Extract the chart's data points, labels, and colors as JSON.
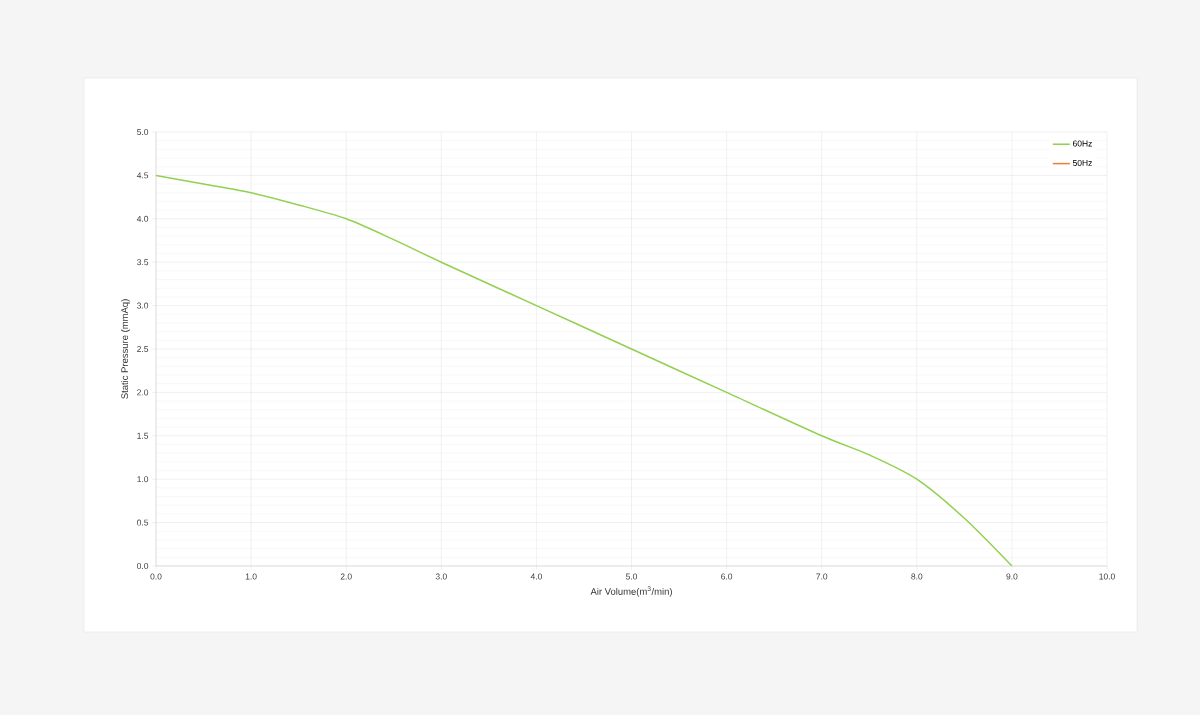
{
  "chart_data": {
    "type": "line",
    "xlabel": "Air Volume(m$^{3}$/min)",
    "ylabel": "Static Pressure (mmAq)",
    "x": [
      0,
      0.5,
      1,
      1.5,
      2,
      2.5,
      3,
      4,
      5,
      6,
      7,
      7.5,
      8,
      8.5,
      9
    ],
    "series": [
      {
        "name": "60Hz",
        "color": "#92d050",
        "values": [
          4.5,
          4.4,
          4.3,
          4.16,
          4.0,
          3.76,
          3.5,
          3.0,
          2.5,
          2.0,
          1.5,
          1.28,
          1.0,
          0.55,
          0
        ]
      },
      {
        "name": "50Hz",
        "color": "#ed7d31",
        "values": [
          null,
          null,
          null,
          null,
          null,
          null,
          null,
          null,
          null,
          null,
          null,
          null,
          null,
          null,
          null
        ]
      }
    ],
    "xlim": [
      0,
      10
    ],
    "ylim": [
      0,
      5
    ],
    "xticks": [
      {
        "value": 0,
        "label": "0.0"
      },
      {
        "value": 1,
        "label": "1.0"
      },
      {
        "value": 2,
        "label": "2.0"
      },
      {
        "value": 3,
        "label": "3.0"
      },
      {
        "value": 4,
        "label": "4.0"
      },
      {
        "value": 5,
        "label": "5.0"
      },
      {
        "value": 6,
        "label": "6.0"
      },
      {
        "value": 7,
        "label": "7.0"
      },
      {
        "value": 8,
        "label": "8.0"
      },
      {
        "value": 9,
        "label": "9.0"
      },
      {
        "value": 10,
        "label": "10.0"
      }
    ],
    "yticks": [
      {
        "value": 0,
        "label": "0.0"
      },
      {
        "value": 0.5,
        "label": "0.5"
      },
      {
        "value": 1,
        "label": "1.0"
      },
      {
        "value": 1.5,
        "label": "1.5"
      },
      {
        "value": 2,
        "label": "2.0"
      },
      {
        "value": 2.5,
        "label": "2.5"
      },
      {
        "value": 3,
        "label": "3.0"
      },
      {
        "value": 3.5,
        "label": "3.5"
      },
      {
        "value": 4,
        "label": "4.0"
      },
      {
        "value": 4.5,
        "label": "4.5"
      },
      {
        "value": 5,
        "label": "5.0"
      }
    ],
    "grid": true,
    "legend": "top right",
    "marker": "none",
    "line_style": "solid"
  }
}
